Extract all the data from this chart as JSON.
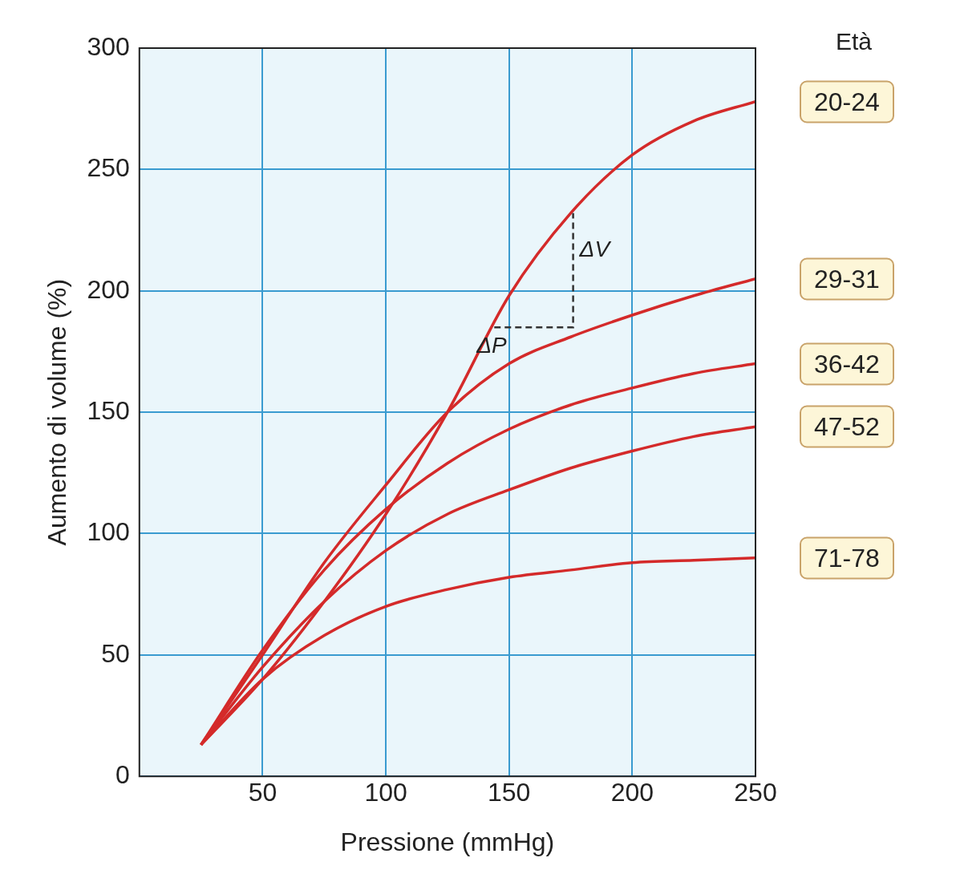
{
  "chart_data": {
    "type": "line",
    "xlabel": "Pressione (mmHg)",
    "ylabel": "Aumento di volume (%)",
    "legend_title": "Età",
    "legend": "right",
    "grid": true,
    "marker": "none",
    "line_style": "solid",
    "xlim": [
      0,
      250
    ],
    "xticks": [
      50,
      100,
      150,
      200,
      250
    ],
    "ylim": [
      0,
      300
    ],
    "yticks": [
      0,
      50,
      100,
      150,
      200,
      250,
      300
    ],
    "x": [
      25,
      50,
      75,
      100,
      125,
      150,
      175,
      200,
      225,
      250
    ],
    "series": [
      {
        "name": "20-24",
        "color": "#d42a2a",
        "values": [
          13,
          40,
          72,
          108,
          150,
          198,
          232,
          256,
          270,
          278
        ]
      },
      {
        "name": "29-31",
        "color": "#d42a2a",
        "values": [
          13,
          50,
          88,
          120,
          150,
          170,
          181,
          190,
          198,
          205
        ]
      },
      {
        "name": "36-42",
        "color": "#d42a2a",
        "values": [
          13,
          52,
          85,
          110,
          129,
          143,
          153,
          160,
          166,
          170
        ]
      },
      {
        "name": "47-52",
        "color": "#d42a2a",
        "values": [
          13,
          45,
          72,
          93,
          108,
          118,
          127,
          134,
          140,
          144
        ]
      },
      {
        "name": "71-78",
        "color": "#d42a2a",
        "values": [
          13,
          40,
          58,
          70,
          77,
          82,
          85,
          88,
          89,
          90
        ]
      }
    ],
    "annotations": [
      {
        "text": "ΔP",
        "x": 144,
        "y": 185
      },
      {
        "text": "ΔV",
        "x": 176,
        "y": 232
      }
    ]
  }
}
